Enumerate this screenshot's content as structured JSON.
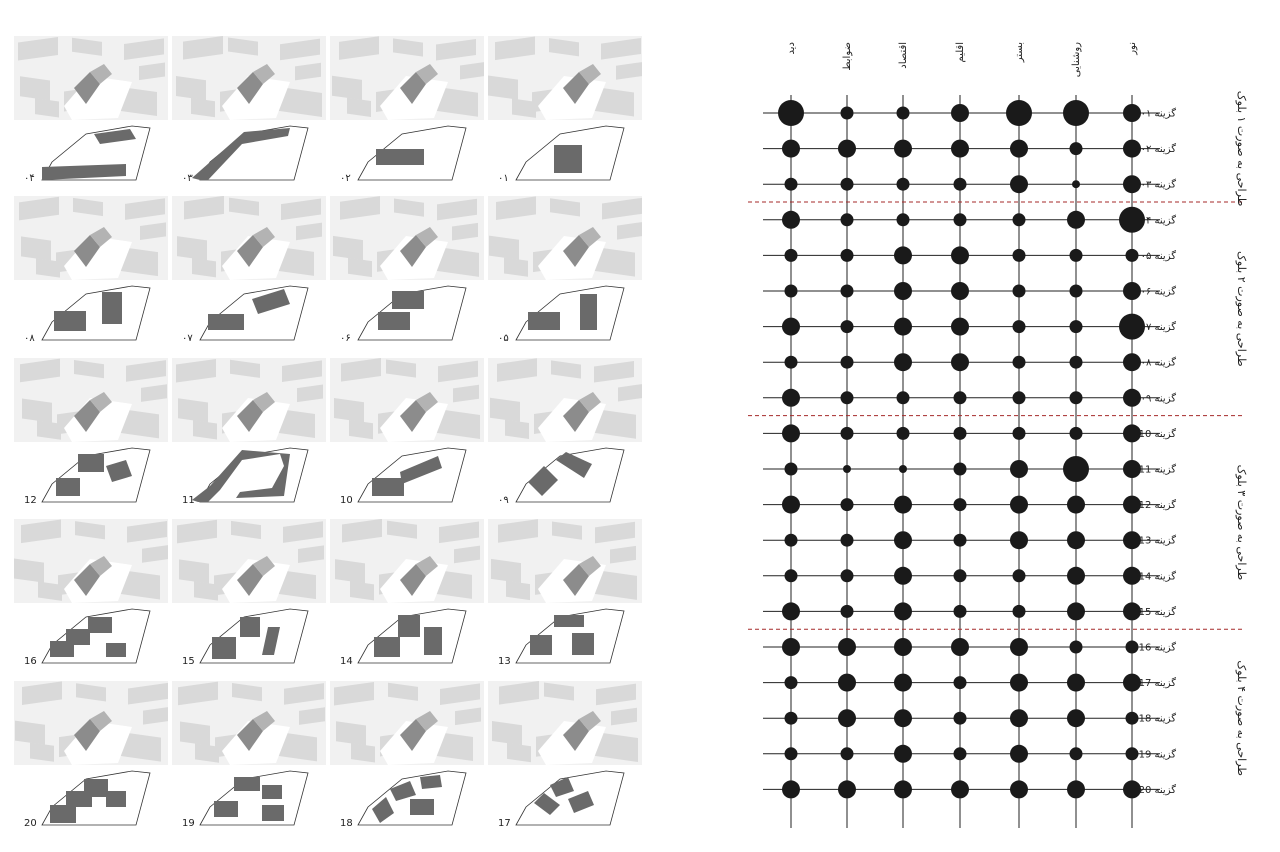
{
  "criteria": [
    "دید",
    "ضوابط",
    "اقتصاد",
    "اقلیم",
    "بستر",
    "روشنایی",
    "نور"
  ],
  "option_prefix": "گزینه",
  "options": [
    {
      "label": "۰۱",
      "sizes": [
        3,
        1,
        1,
        2,
        3,
        3,
        2
      ]
    },
    {
      "label": "۰۲",
      "sizes": [
        2,
        2,
        2,
        2,
        2,
        1,
        2
      ]
    },
    {
      "label": "۰۳",
      "sizes": [
        1,
        1,
        1,
        1,
        2,
        0,
        2
      ]
    },
    {
      "label": "۰۴",
      "sizes": [
        2,
        1,
        1,
        1,
        1,
        2,
        3
      ]
    },
    {
      "label": "۰۵",
      "sizes": [
        1,
        1,
        2,
        2,
        1,
        1,
        1
      ]
    },
    {
      "label": "۰۶",
      "sizes": [
        1,
        1,
        2,
        2,
        1,
        1,
        2
      ]
    },
    {
      "label": "۰۷",
      "sizes": [
        2,
        1,
        2,
        2,
        1,
        1,
        3
      ]
    },
    {
      "label": "۰۸",
      "sizes": [
        1,
        1,
        2,
        2,
        1,
        1,
        2
      ]
    },
    {
      "label": "۰۹",
      "sizes": [
        2,
        1,
        1,
        1,
        1,
        1,
        2
      ]
    },
    {
      "label": "10",
      "sizes": [
        2,
        1,
        1,
        1,
        1,
        1,
        2
      ]
    },
    {
      "label": "11",
      "sizes": [
        1,
        0,
        0,
        1,
        2,
        3,
        2
      ]
    },
    {
      "label": "12",
      "sizes": [
        2,
        1,
        2,
        1,
        2,
        2,
        2
      ]
    },
    {
      "label": "13",
      "sizes": [
        1,
        1,
        2,
        1,
        2,
        2,
        2
      ]
    },
    {
      "label": "14",
      "sizes": [
        1,
        1,
        2,
        1,
        1,
        2,
        2
      ]
    },
    {
      "label": "15",
      "sizes": [
        2,
        1,
        2,
        1,
        1,
        2,
        2
      ]
    },
    {
      "label": "16",
      "sizes": [
        2,
        2,
        2,
        2,
        2,
        1,
        1
      ]
    },
    {
      "label": "17",
      "sizes": [
        1,
        2,
        2,
        1,
        2,
        2,
        2
      ]
    },
    {
      "label": "18",
      "sizes": [
        1,
        2,
        2,
        1,
        2,
        2,
        1
      ]
    },
    {
      "label": "19",
      "sizes": [
        1,
        1,
        2,
        1,
        2,
        1,
        1
      ]
    },
    {
      "label": "20",
      "sizes": [
        2,
        2,
        2,
        2,
        2,
        2,
        2
      ]
    }
  ],
  "groups": [
    {
      "label": "طراحی به صورت ۱ بلوک",
      "from": 0,
      "to": 2
    },
    {
      "label": "طراحی به صورت ۲ بلوک",
      "from": 3,
      "to": 8
    },
    {
      "label": "طراحی به صورت ۳ بلوک",
      "from": 9,
      "to": 14
    },
    {
      "label": "طراحی به صورت ۴ بلوک",
      "from": 15,
      "to": 19
    }
  ],
  "gallery": {
    "rows": [
      [
        "۰۴",
        "۰۳",
        "۰۲",
        "۰۱"
      ],
      [
        "۰۸",
        "۰۷",
        "۰۶",
        "۰۵"
      ],
      [
        "12",
        "11",
        "10",
        "۰۹"
      ],
      [
        "16",
        "15",
        "14",
        "13"
      ],
      [
        "20",
        "19",
        "18",
        "17"
      ]
    ]
  },
  "colors": {
    "dot": "#1a1a1a",
    "grid": "#222222",
    "separator": "#a52a2a",
    "block": "#6a6a6a",
    "context": "#d9d9d9"
  }
}
